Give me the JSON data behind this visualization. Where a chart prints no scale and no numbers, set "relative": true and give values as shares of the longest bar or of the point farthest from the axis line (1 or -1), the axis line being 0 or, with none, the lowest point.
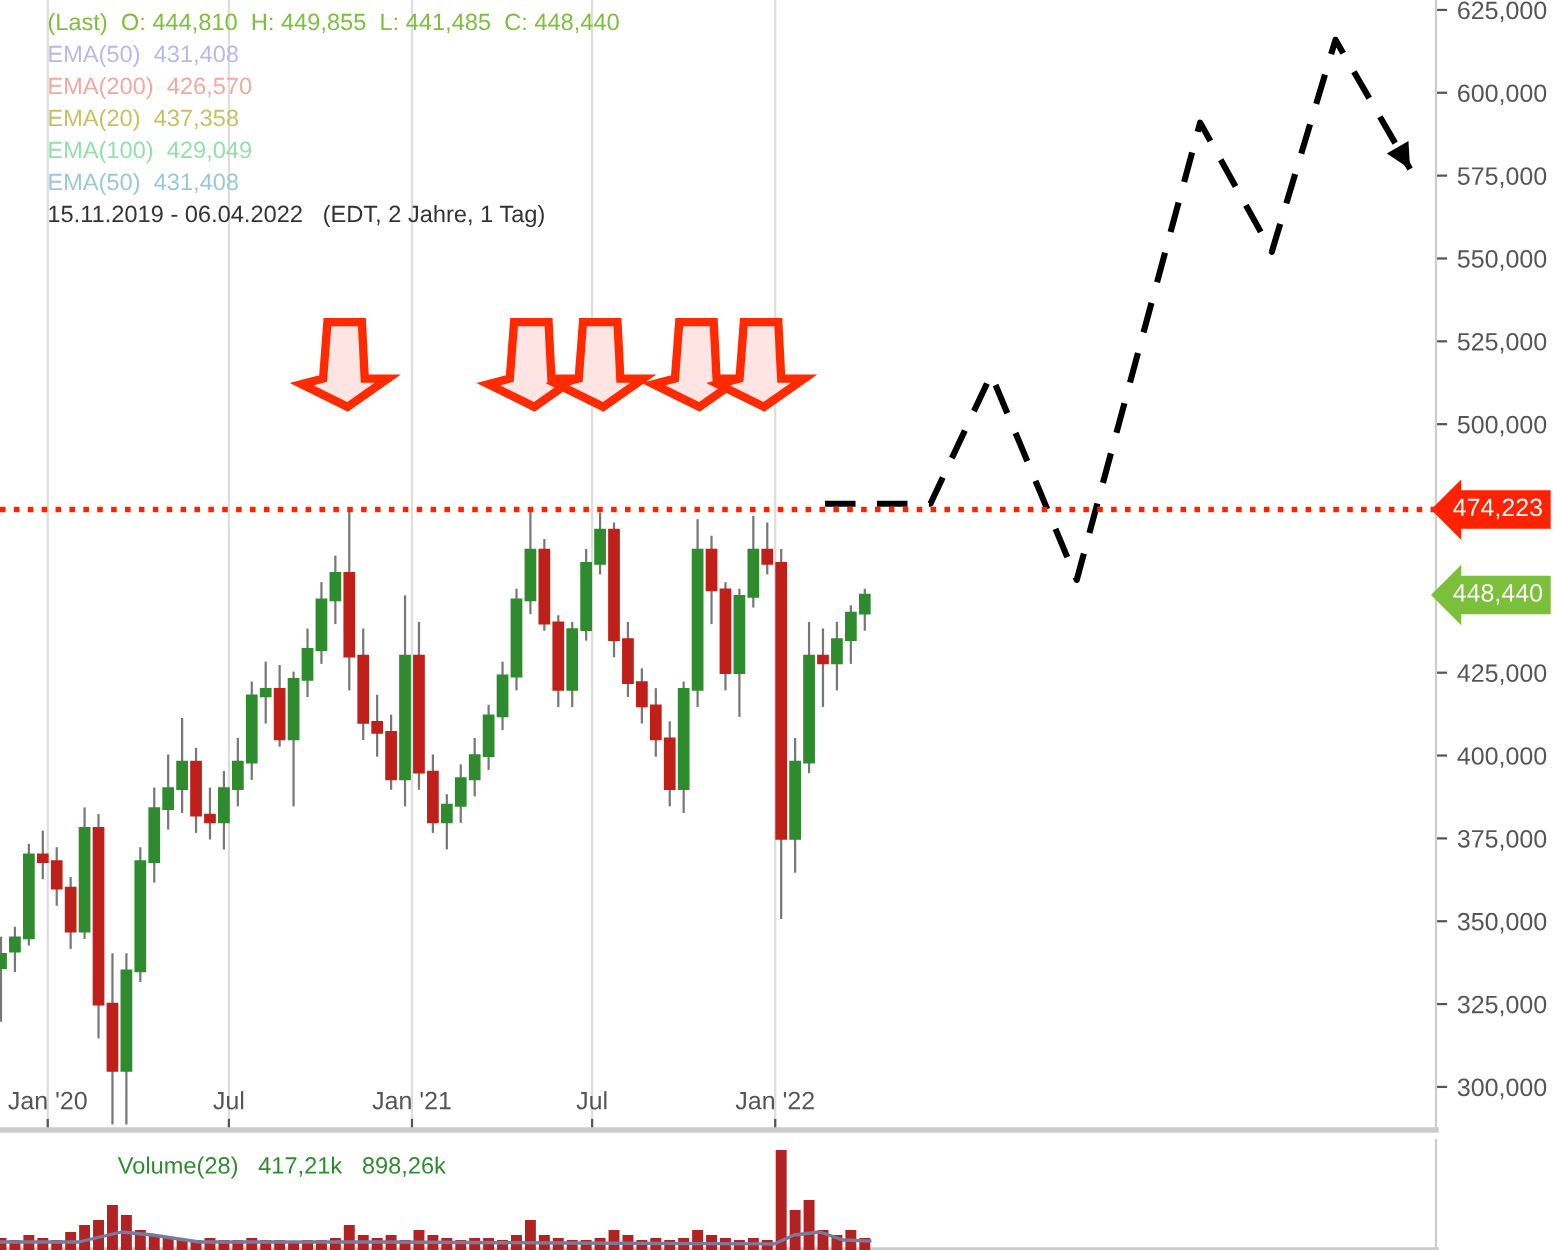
{
  "chart_data": [
    {
      "type": "candlestick",
      "annotations": [
        "(Last)  O: 444,810  H: 449,855  L: 441,485  C: 448,440",
        "EMA(50)  431,408",
        "EMA(200)  426,570",
        "EMA(20)  437,358",
        "EMA(100)  429,049",
        "EMA(50)  431,408",
        "15.11.2019 - 06.04.2022   (EDT, 2 Jahre, 1 Tag)",
        "448,440"
      ],
      "x": [
        "2019-11-15",
        "2019-11-29",
        "2019-12-13",
        "2019-12-27",
        "2020-01-10",
        "2020-01-24",
        "2020-02-07",
        "2020-02-21",
        "2020-03-06",
        "2020-03-20",
        "2020-04-03",
        "2020-04-17",
        "2020-05-01",
        "2020-05-15",
        "2020-05-29",
        "2020-06-12",
        "2020-06-26",
        "2020-07-10",
        "2020-07-24",
        "2020-08-07",
        "2020-08-21",
        "2020-09-04",
        "2020-09-18",
        "2020-10-02",
        "2020-10-16",
        "2020-10-30",
        "2020-11-13",
        "2020-11-27",
        "2020-12-11",
        "2020-12-25",
        "2021-01-08",
        "2021-01-22",
        "2021-02-05",
        "2021-02-19",
        "2021-03-05",
        "2021-03-19",
        "2021-04-02",
        "2021-04-16",
        "2021-04-30",
        "2021-05-14",
        "2021-05-28",
        "2021-06-11",
        "2021-06-25",
        "2021-07-09",
        "2021-07-23",
        "2021-08-06",
        "2021-08-20",
        "2021-09-03",
        "2021-09-17",
        "2021-10-01",
        "2021-10-15",
        "2021-10-29",
        "2021-11-12",
        "2021-11-26",
        "2021-12-10",
        "2021-12-24",
        "2022-01-07",
        "2022-01-21",
        "2022-02-04",
        "2022-02-18",
        "2022-03-04",
        "2022-03-18",
        "2022-04-01"
      ],
      "ohlc": [
        [
          336000,
          345000,
          320000,
          340000
        ],
        [
          341000,
          348000,
          335000,
          345000
        ],
        [
          345000,
          373000,
          343000,
          370000
        ],
        [
          370000,
          377000,
          363000,
          368000
        ],
        [
          368000,
          372000,
          355000,
          360000
        ],
        [
          360000,
          363000,
          342000,
          347000
        ],
        [
          347000,
          384000,
          345000,
          378000
        ],
        [
          378000,
          382000,
          315000,
          325000
        ],
        [
          325000,
          340000,
          289000,
          305000
        ],
        [
          305000,
          340000,
          289000,
          335000
        ],
        [
          335000,
          372000,
          332000,
          368000
        ],
        [
          368000,
          390000,
          362000,
          384000
        ],
        [
          384000,
          400000,
          378000,
          390000
        ],
        [
          390000,
          411000,
          383000,
          398000
        ],
        [
          398000,
          402000,
          377000,
          382000
        ],
        [
          382000,
          390000,
          375000,
          380000
        ],
        [
          380000,
          395000,
          372000,
          390000
        ],
        [
          390000,
          405000,
          385000,
          398000
        ],
        [
          398000,
          422000,
          393000,
          418000
        ],
        [
          418000,
          428000,
          410000,
          420000
        ],
        [
          420000,
          427000,
          403000,
          405000
        ],
        [
          405000,
          425000,
          385000,
          423000
        ],
        [
          423000,
          438000,
          418000,
          432000
        ],
        [
          432000,
          452000,
          428000,
          447000
        ],
        [
          447000,
          460000,
          440000,
          455000
        ],
        [
          455000,
          474000,
          420000,
          430000
        ],
        [
          430000,
          438000,
          405000,
          410000
        ],
        [
          410000,
          418000,
          400000,
          407000
        ],
        [
          407000,
          412000,
          390000,
          393000
        ],
        [
          393000,
          448000,
          385000,
          430000
        ],
        [
          430000,
          440000,
          390000,
          395000
        ],
        [
          395000,
          400000,
          377000,
          380000
        ],
        [
          380000,
          388000,
          372000,
          385000
        ],
        [
          385000,
          397000,
          380000,
          393000
        ],
        [
          393000,
          405000,
          388000,
          400000
        ],
        [
          400000,
          415000,
          396000,
          412000
        ],
        [
          412000,
          428000,
          408000,
          424000
        ],
        [
          424000,
          450000,
          420000,
          447000
        ],
        [
          447000,
          474000,
          443000,
          462000
        ],
        [
          462000,
          465000,
          438000,
          440000
        ],
        [
          440000,
          442000,
          415000,
          420000
        ],
        [
          420000,
          440000,
          415000,
          438000
        ],
        [
          438000,
          462000,
          435000,
          458000
        ],
        [
          458000,
          473000,
          455000,
          468000
        ],
        [
          468000,
          470000,
          430000,
          435000
        ],
        [
          435000,
          440000,
          418000,
          422000
        ],
        [
          422000,
          426000,
          410000,
          415000
        ],
        [
          415000,
          420000,
          400000,
          405000
        ],
        [
          405000,
          410000,
          385000,
          390000
        ],
        [
          390000,
          422000,
          383000,
          420000
        ],
        [
          420000,
          471000,
          415000,
          462000
        ],
        [
          462000,
          466000,
          440000,
          450000
        ],
        [
          450000,
          452000,
          420000,
          425000
        ],
        [
          425000,
          450000,
          412000,
          448000
        ],
        [
          448000,
          472000,
          445000,
          462000
        ],
        [
          462000,
          470000,
          455000,
          458000
        ],
        [
          458000,
          462000,
          351000,
          375000
        ],
        [
          375000,
          405000,
          365000,
          398000
        ],
        [
          398000,
          440000,
          395000,
          430000
        ],
        [
          430000,
          438000,
          415000,
          428000
        ],
        [
          428000,
          440000,
          420000,
          435000
        ],
        [
          435000,
          445000,
          428000,
          443000
        ],
        [
          443000,
          450000,
          438000,
          448440
        ]
      ],
      "series": [
        {
          "type": "line",
          "color": "#000000",
          "line_style": "dashed",
          "x": [
            "2022-02-20",
            "2022-06-06",
            "2022-08-06",
            "2022-10-31",
            "2023-03-04",
            "2023-05-15",
            "2023-07-18",
            "2023-10-01"
          ],
          "values": [
            476000,
            476000,
            515000,
            453000,
            591000,
            552000,
            616000,
            577000
          ]
        }
      ],
      "ref_lines": [
        {
          "axis": "y",
          "value": 474223,
          "label": "474,223",
          "color": "#ff2200",
          "line_style": "dotted"
        }
      ],
      "xlim": [
        "2019-11-14",
        "2023-10-27"
      ],
      "xticks": [
        {
          "value": "2020-01-01",
          "label": "Jan '20"
        },
        {
          "value": "2020-07-01",
          "label": "Jul"
        },
        {
          "value": "2021-01-01",
          "label": "Jan '21"
        },
        {
          "value": "2021-07-01",
          "label": "Jul"
        },
        {
          "value": "2022-01-01",
          "label": "Jan '22"
        }
      ],
      "ylim": [
        287000,
        628000
      ],
      "yticks": [
        {
          "value": 300000,
          "label": "300,000"
        },
        {
          "value": 325000,
          "label": "325,000"
        },
        {
          "value": 350000,
          "label": "350,000"
        },
        {
          "value": 375000,
          "label": "375,000"
        },
        {
          "value": 400000,
          "label": "400,000"
        },
        {
          "value": 425000,
          "label": "425,000"
        },
        {
          "value": 500000,
          "label": "500,000"
        },
        {
          "value": 525000,
          "label": "525,000"
        },
        {
          "value": 550000,
          "label": "550,000"
        },
        {
          "value": 575000,
          "label": "575,000"
        },
        {
          "value": 600000,
          "label": "600,000"
        },
        {
          "value": 625000,
          "label": "625,000"
        }
      ],
      "grid": "x"
    },
    {
      "type": "bar",
      "relative": true,
      "title": "Volume(28)",
      "annotations": [
        "417,21k",
        "898,26k"
      ],
      "x": [
        "2019-11-15",
        "2019-11-29",
        "2019-12-13",
        "2019-12-27",
        "2020-01-10",
        "2020-01-24",
        "2020-02-07",
        "2020-02-21",
        "2020-03-06",
        "2020-03-20",
        "2020-04-03",
        "2020-04-17",
        "2020-05-01",
        "2020-05-15",
        "2020-05-29",
        "2020-06-12",
        "2020-06-26",
        "2020-07-10",
        "2020-07-24",
        "2020-08-07",
        "2020-08-21",
        "2020-09-04",
        "2020-09-18",
        "2020-10-02",
        "2020-10-16",
        "2020-10-30",
        "2020-11-13",
        "2020-11-27",
        "2020-12-11",
        "2020-12-25",
        "2021-01-08",
        "2021-01-22",
        "2021-02-05",
        "2021-02-19",
        "2021-03-05",
        "2021-03-19",
        "2021-04-02",
        "2021-04-16",
        "2021-04-30",
        "2021-05-14",
        "2021-05-28",
        "2021-06-11",
        "2021-06-25",
        "2021-07-09",
        "2021-07-23",
        "2021-08-06",
        "2021-08-20",
        "2021-09-03",
        "2021-09-17",
        "2021-10-01",
        "2021-10-15",
        "2021-10-29",
        "2021-11-12",
        "2021-11-26",
        "2021-12-10",
        "2021-12-24",
        "2022-01-07",
        "2022-01-21",
        "2022-02-04",
        "2022-02-18",
        "2022-03-04",
        "2022-03-18",
        "2022-04-01"
      ],
      "series": [
        {
          "color": "#b22222",
          "values": [
            0.12,
            0.1,
            0.15,
            0.12,
            0.1,
            0.18,
            0.25,
            0.3,
            0.45,
            0.35,
            0.2,
            0.15,
            0.12,
            0.1,
            0.1,
            0.12,
            0.1,
            0.1,
            0.12,
            0.1,
            0.1,
            0.08,
            0.1,
            0.1,
            0.12,
            0.25,
            0.15,
            0.12,
            0.15,
            0.1,
            0.2,
            0.15,
            0.12,
            0.1,
            0.12,
            0.12,
            0.1,
            0.15,
            0.3,
            0.15,
            0.12,
            0.1,
            0.1,
            0.12,
            0.2,
            0.15,
            0.1,
            0.12,
            0.1,
            0.12,
            0.2,
            0.15,
            0.12,
            0.1,
            0.12,
            0.1,
            1.0,
            0.4,
            0.5,
            0.2,
            0.15,
            0.2,
            0.12
          ]
        },
        {
          "type": "line",
          "color": "#7a7a9a",
          "x": [
            "2019-11-15",
            "2020-02-01",
            "2020-03-15",
            "2020-04-15",
            "2020-06-01",
            "2020-12-01",
            "2021-06-01",
            "2021-12-31",
            "2022-01-20",
            "2022-02-15",
            "2022-03-10",
            "2022-04-06"
          ],
          "values": [
            0.08,
            0.08,
            0.18,
            0.15,
            0.08,
            0.08,
            0.07,
            0.06,
            0.15,
            0.18,
            0.1,
            0.09
          ]
        }
      ],
      "xlim": [
        "2019-11-14",
        "2023-10-27"
      ],
      "grid": "x"
    }
  ]
}
